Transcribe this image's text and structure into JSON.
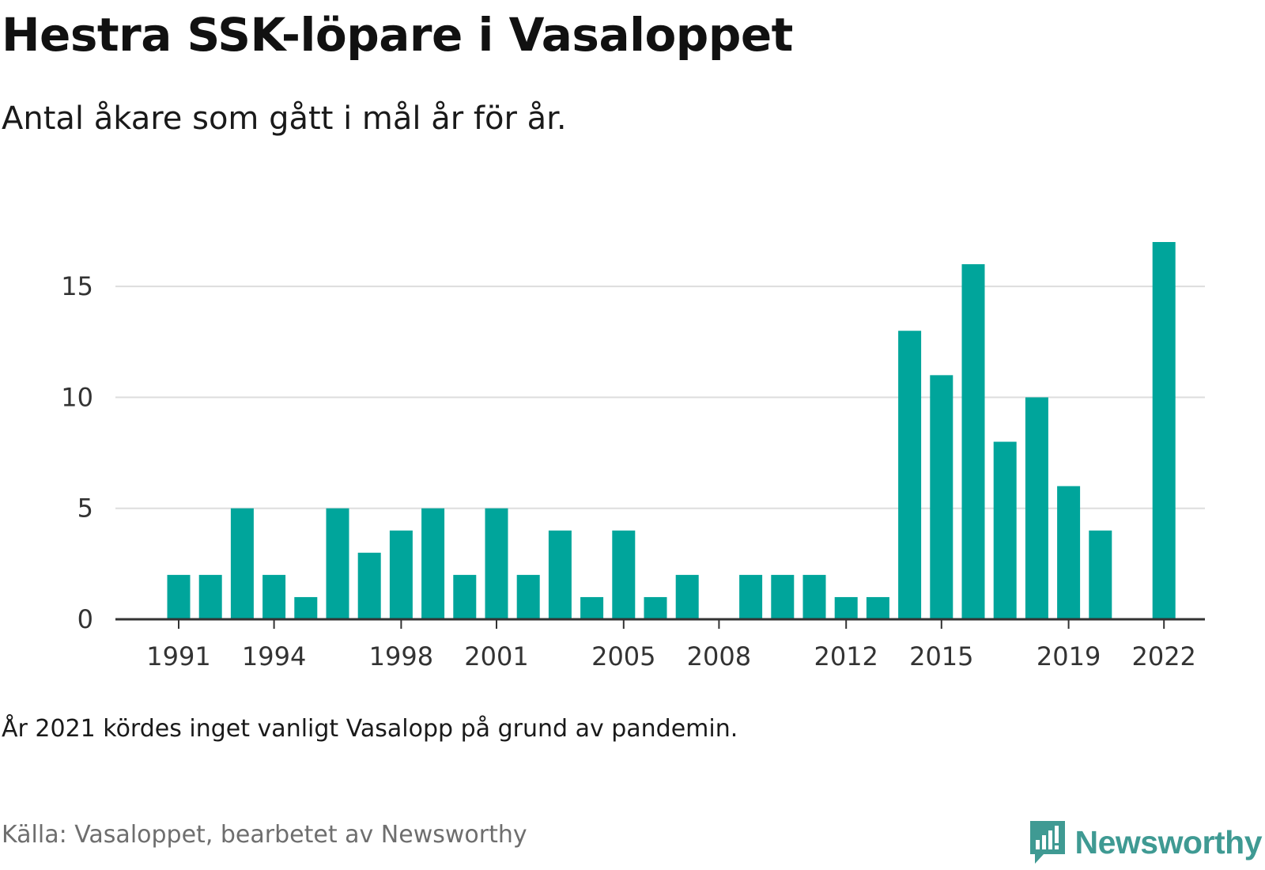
{
  "header": {
    "title": "Hestra SSK-löpare i Vasaloppet",
    "subtitle": "Antal åkare som gått i mål år för år."
  },
  "footer": {
    "note": "År 2021 kördes inget vanligt Vasalopp på grund av pandemin.",
    "source": "Källa: Vasaloppet, bearbetet av Newsworthy",
    "brand": "Newsworthy",
    "brand_icon": "newsworthy-logo-icon"
  },
  "colors": {
    "bar": "#00a59b",
    "grid": "#dddddd",
    "axis": "#333333",
    "brand": "#3f9a93"
  },
  "chart_data": {
    "type": "bar",
    "title": "Hestra SSK-löpare i Vasaloppet",
    "subtitle": "Antal åkare som gått i mål år för år.",
    "xlabel": "",
    "ylabel": "",
    "categories": [
      1991,
      1992,
      1993,
      1994,
      1995,
      1996,
      1997,
      1998,
      1999,
      2000,
      2001,
      2002,
      2003,
      2004,
      2005,
      2006,
      2007,
      2008,
      2009,
      2010,
      2011,
      2012,
      2013,
      2014,
      2015,
      2016,
      2017,
      2018,
      2019,
      2020,
      2021,
      2022
    ],
    "values": [
      2,
      2,
      5,
      2,
      1,
      5,
      3,
      4,
      5,
      2,
      5,
      2,
      4,
      1,
      4,
      1,
      2,
      0,
      2,
      2,
      2,
      1,
      1,
      13,
      11,
      16,
      8,
      10,
      6,
      4,
      null,
      17
    ],
    "x_tick_labels": [
      "1991",
      "1994",
      "1998",
      "2001",
      "2005",
      "2008",
      "2012",
      "2015",
      "2019",
      "2022"
    ],
    "y_ticks": [
      0,
      5,
      10,
      15
    ],
    "ylim": [
      0,
      17
    ],
    "grid": true,
    "legend": "none"
  }
}
